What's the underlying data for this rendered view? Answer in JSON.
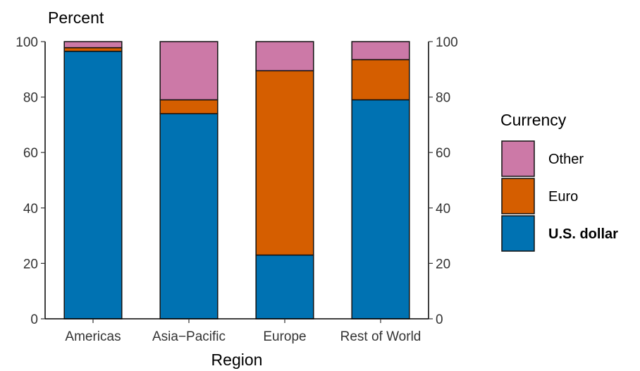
{
  "chart_data": {
    "type": "bar",
    "stacked": true,
    "y_axis_title": "Percent",
    "x_axis_title": "Region",
    "ylim": [
      0,
      100
    ],
    "y_ticks": [
      0,
      20,
      40,
      60,
      80,
      100
    ],
    "y_tick_labels": [
      "0",
      "20",
      "40",
      "60",
      "80",
      "100"
    ],
    "secondary_y_axis": true,
    "grid": false,
    "categories": [
      "Americas",
      "Asia−Pacific",
      "Europe",
      "Rest of World"
    ],
    "series": [
      {
        "name": "U.S. dollar",
        "color": "#0072B2",
        "values": [
          96.5,
          74,
          23,
          79
        ]
      },
      {
        "name": "Euro",
        "color": "#D55E00",
        "values": [
          1.3,
          5,
          66.5,
          14.5
        ]
      },
      {
        "name": "Other",
        "color": "#CC79A7",
        "values": [
          2.2,
          21,
          10.5,
          6.5
        ]
      }
    ],
    "legend": {
      "title": "Currency",
      "position": "right",
      "entries": [
        {
          "label": "Other",
          "color": "#CC79A7",
          "bold": false
        },
        {
          "label": "Euro",
          "color": "#D55E00",
          "bold": false
        },
        {
          "label": "U.S. dollar",
          "color": "#0072B2",
          "bold": true
        }
      ]
    }
  }
}
